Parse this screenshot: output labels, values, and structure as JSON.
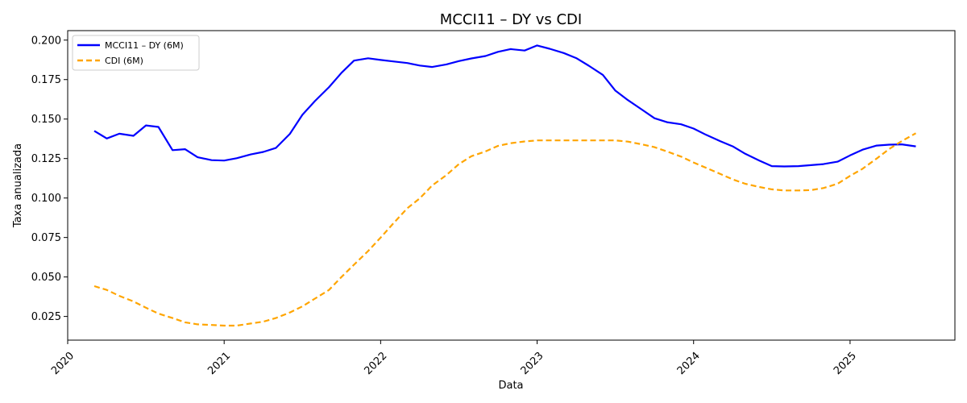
{
  "chart_data": {
    "type": "line",
    "title": "MCCI11 – DY vs CDI",
    "xlabel": "Data",
    "ylabel": "Taxa anualizada",
    "xlim": [
      2020.0,
      2025.67
    ],
    "ylim": [
      0.01,
      0.206
    ],
    "x_ticks": [
      2020,
      2021,
      2022,
      2023,
      2024,
      2025
    ],
    "x_tick_labels": [
      "2020",
      "2021",
      "2022",
      "2023",
      "2024",
      "2025"
    ],
    "y_ticks": [
      0.025,
      0.05,
      0.075,
      0.1,
      0.125,
      0.15,
      0.175,
      0.2
    ],
    "y_tick_labels": [
      "0.025",
      "0.050",
      "0.075",
      "0.100",
      "0.125",
      "0.150",
      "0.175",
      "0.200"
    ],
    "grid": false,
    "legend_position": "top-left",
    "series": [
      {
        "name": "MCCI11 – DY (6M)",
        "color": "#0000ff",
        "style": "solid",
        "x": [
          2020.17,
          2020.25,
          2020.33,
          2020.42,
          2020.5,
          2020.58,
          2020.67,
          2020.75,
          2020.83,
          2020.92,
          2021.0,
          2021.08,
          2021.17,
          2021.25,
          2021.33,
          2021.42,
          2021.5,
          2021.58,
          2021.67,
          2021.75,
          2021.83,
          2021.92,
          2022.0,
          2022.08,
          2022.17,
          2022.25,
          2022.33,
          2022.42,
          2022.5,
          2022.58,
          2022.67,
          2022.75,
          2022.83,
          2022.92,
          2023.0,
          2023.08,
          2023.17,
          2023.25,
          2023.33,
          2023.42,
          2023.5,
          2023.58,
          2023.67,
          2023.75,
          2023.83,
          2023.92,
          2024.0,
          2024.08,
          2024.17,
          2024.25,
          2024.33,
          2024.42,
          2024.5,
          2024.58,
          2024.67,
          2024.75,
          2024.83,
          2024.92,
          2025.0,
          2025.08,
          2025.17,
          2025.25,
          2025.33,
          2025.42
        ],
        "y": [
          0.1425,
          0.1377,
          0.1407,
          0.1394,
          0.146,
          0.145,
          0.1303,
          0.1309,
          0.1258,
          0.124,
          0.1237,
          0.1252,
          0.1276,
          0.1292,
          0.1317,
          0.1406,
          0.1527,
          0.1614,
          0.1702,
          0.1793,
          0.187,
          0.1885,
          0.1874,
          0.1865,
          0.1855,
          0.1839,
          0.183,
          0.1846,
          0.1867,
          0.1884,
          0.1899,
          0.1926,
          0.1943,
          0.1934,
          0.1966,
          0.1945,
          0.1918,
          0.1886,
          0.1838,
          0.178,
          0.168,
          0.162,
          0.156,
          0.1505,
          0.148,
          0.1467,
          0.144,
          0.14,
          0.136,
          0.1327,
          0.128,
          0.1237,
          0.1202,
          0.12,
          0.1202,
          0.1208,
          0.1215,
          0.123,
          0.127,
          0.1306,
          0.1332,
          0.1338,
          0.134,
          0.1327
        ]
      },
      {
        "name": "CDI (6M)",
        "color": "#ffa500",
        "style": "dashed",
        "x": [
          2020.17,
          2020.25,
          2020.33,
          2020.42,
          2020.5,
          2020.58,
          2020.67,
          2020.75,
          2020.83,
          2020.92,
          2021.0,
          2021.08,
          2021.17,
          2021.25,
          2021.33,
          2021.42,
          2021.5,
          2021.58,
          2021.67,
          2021.75,
          2021.83,
          2021.92,
          2022.0,
          2022.08,
          2022.17,
          2022.25,
          2022.33,
          2022.42,
          2022.5,
          2022.58,
          2022.67,
          2022.75,
          2022.83,
          2022.92,
          2023.0,
          2023.08,
          2023.17,
          2023.25,
          2023.33,
          2023.42,
          2023.5,
          2023.58,
          2023.67,
          2023.75,
          2023.83,
          2023.92,
          2024.0,
          2024.08,
          2024.17,
          2024.25,
          2024.33,
          2024.42,
          2024.5,
          2024.58,
          2024.67,
          2024.75,
          2024.83,
          2024.92,
          2025.0,
          2025.08,
          2025.17,
          2025.25,
          2025.33,
          2025.42
        ],
        "y": [
          0.0442,
          0.0418,
          0.038,
          0.0345,
          0.0305,
          0.0268,
          0.024,
          0.0213,
          0.02,
          0.0196,
          0.0192,
          0.0192,
          0.0205,
          0.0217,
          0.024,
          0.0275,
          0.0314,
          0.0363,
          0.0418,
          0.05,
          0.0578,
          0.0664,
          0.075,
          0.0838,
          0.0935,
          0.0998,
          0.108,
          0.1145,
          0.1215,
          0.1265,
          0.1295,
          0.133,
          0.1347,
          0.1358,
          0.1365,
          0.1365,
          0.1365,
          0.1365,
          0.1365,
          0.1365,
          0.1365,
          0.1357,
          0.134,
          0.1322,
          0.1295,
          0.1262,
          0.1225,
          0.1191,
          0.1153,
          0.1118,
          0.109,
          0.107,
          0.1055,
          0.1048,
          0.1048,
          0.105,
          0.1063,
          0.109,
          0.114,
          0.1185,
          0.125,
          0.131,
          0.136,
          0.141
        ]
      }
    ]
  }
}
